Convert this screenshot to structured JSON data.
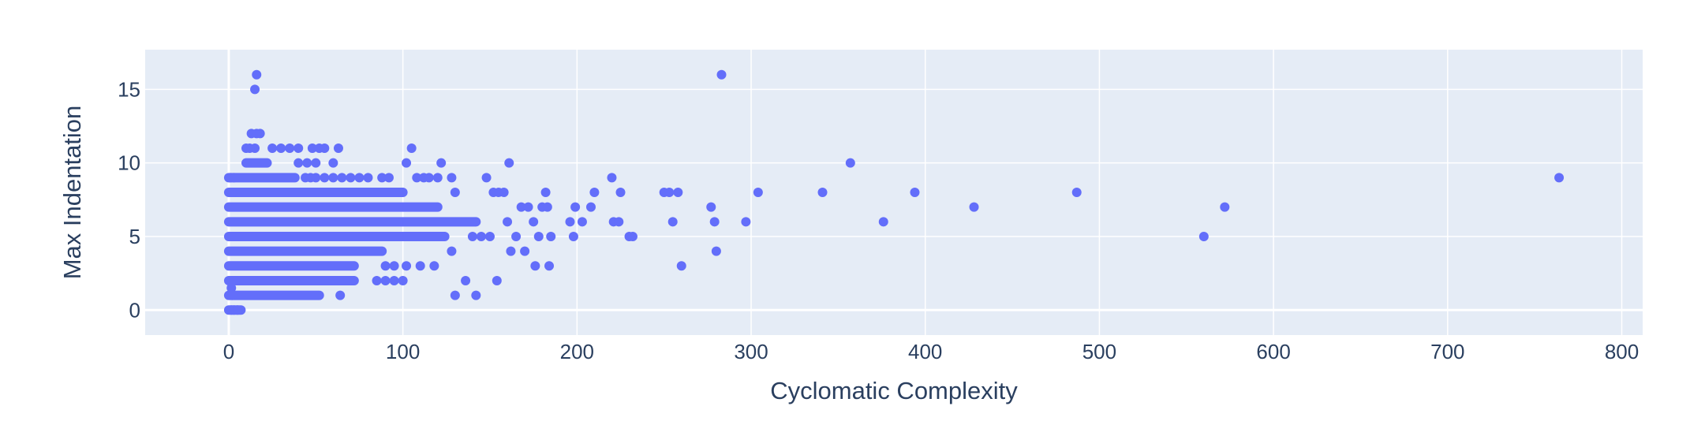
{
  "chart_data": {
    "type": "scatter",
    "xlabel": "Cyclomatic Complexity",
    "ylabel": "Max Indentation",
    "xlim": [
      -48,
      812
    ],
    "ylim": [
      -1.7,
      17.7
    ],
    "x_ticks": [
      0,
      100,
      200,
      300,
      400,
      500,
      600,
      700,
      800
    ],
    "y_ticks": [
      0,
      5,
      10,
      15
    ],
    "grid": true,
    "legend": "none",
    "colors": {
      "plot_bg": "#e5ecf6",
      "grid": "#ffffff",
      "marker": "#636efa",
      "text": "#2a3f5f"
    },
    "bands": [
      {
        "y": 0,
        "x_from": 0,
        "x_to": 7
      },
      {
        "y": 1,
        "x_from": 0,
        "x_to": 52
      },
      {
        "y": 2,
        "x_from": 0,
        "x_to": 72
      },
      {
        "y": 3,
        "x_from": 0,
        "x_to": 72
      },
      {
        "y": 4,
        "x_from": 0,
        "x_to": 88
      },
      {
        "y": 5,
        "x_from": 0,
        "x_to": 124
      },
      {
        "y": 6,
        "x_from": 0,
        "x_to": 142
      },
      {
        "y": 7,
        "x_from": 0,
        "x_to": 120
      },
      {
        "y": 8,
        "x_from": 0,
        "x_to": 100
      },
      {
        "y": 9,
        "x_from": 0,
        "x_to": 38
      },
      {
        "y": 10,
        "x_from": 10,
        "x_to": 22
      }
    ],
    "points": [
      [
        1.5,
        0
      ],
      [
        3,
        0
      ],
      [
        5,
        0
      ],
      [
        1.5,
        1.5
      ],
      [
        2,
        1
      ],
      [
        1,
        9
      ],
      [
        3,
        9
      ],
      [
        2,
        8
      ],
      [
        13,
        12
      ],
      [
        16,
        12
      ],
      [
        18,
        12
      ],
      [
        10,
        11
      ],
      [
        15,
        11
      ],
      [
        12,
        11
      ],
      [
        16,
        16
      ],
      [
        15,
        15
      ],
      [
        30,
        11
      ],
      [
        25,
        11
      ],
      [
        35,
        11
      ],
      [
        40,
        11
      ],
      [
        48,
        11
      ],
      [
        52,
        11
      ],
      [
        55,
        11
      ],
      [
        63,
        11
      ],
      [
        45,
        10
      ],
      [
        50,
        10
      ],
      [
        60,
        10
      ],
      [
        40,
        10
      ],
      [
        44,
        9
      ],
      [
        47,
        9
      ],
      [
        50,
        9
      ],
      [
        55,
        9
      ],
      [
        60,
        9
      ],
      [
        65,
        9
      ],
      [
        70,
        9
      ],
      [
        75,
        9
      ],
      [
        80,
        9
      ],
      [
        88,
        9
      ],
      [
        92,
        9
      ],
      [
        64,
        1
      ],
      [
        85,
        2
      ],
      [
        90,
        2
      ],
      [
        95,
        2
      ],
      [
        100,
        2
      ],
      [
        102,
        3
      ],
      [
        95,
        3
      ],
      [
        90,
        3
      ],
      [
        102,
        10
      ],
      [
        105,
        11
      ],
      [
        108,
        9
      ],
      [
        112,
        9
      ],
      [
        115,
        9
      ],
      [
        120,
        9
      ],
      [
        122,
        10
      ],
      [
        128,
        9
      ],
      [
        130,
        8
      ],
      [
        110,
        3
      ],
      [
        118,
        3
      ],
      [
        128,
        4
      ],
      [
        130,
        1
      ],
      [
        136,
        2
      ],
      [
        142,
        1
      ],
      [
        140,
        5
      ],
      [
        145,
        5
      ],
      [
        150,
        5
      ],
      [
        148,
        9
      ],
      [
        152,
        8
      ],
      [
        155,
        8
      ],
      [
        158,
        8
      ],
      [
        160,
        6
      ],
      [
        161,
        10
      ],
      [
        154,
        2
      ],
      [
        162,
        4
      ],
      [
        165,
        5
      ],
      [
        168,
        7
      ],
      [
        170,
        4
      ],
      [
        172,
        7
      ],
      [
        175,
        6
      ],
      [
        176,
        3
      ],
      [
        178,
        5
      ],
      [
        180,
        7
      ],
      [
        182,
        8
      ],
      [
        183,
        7
      ],
      [
        184,
        3
      ],
      [
        185,
        5
      ],
      [
        196,
        6
      ],
      [
        198,
        5
      ],
      [
        199,
        7
      ],
      [
        203,
        6
      ],
      [
        208,
        7
      ],
      [
        210,
        8
      ],
      [
        220,
        9
      ],
      [
        221,
        6
      ],
      [
        224,
        6
      ],
      [
        225,
        8
      ],
      [
        230,
        5
      ],
      [
        232,
        5
      ],
      [
        250,
        8
      ],
      [
        253,
        8
      ],
      [
        255,
        6
      ],
      [
        258,
        8
      ],
      [
        260,
        3
      ],
      [
        277,
        7
      ],
      [
        279,
        6
      ],
      [
        280,
        4
      ],
      [
        283,
        16
      ],
      [
        297,
        6
      ],
      [
        304,
        8
      ],
      [
        341,
        8
      ],
      [
        357,
        10
      ],
      [
        376,
        6
      ],
      [
        394,
        8
      ],
      [
        428,
        7
      ],
      [
        487,
        8
      ],
      [
        560,
        5
      ],
      [
        572,
        7
      ],
      [
        764,
        9
      ]
    ]
  }
}
